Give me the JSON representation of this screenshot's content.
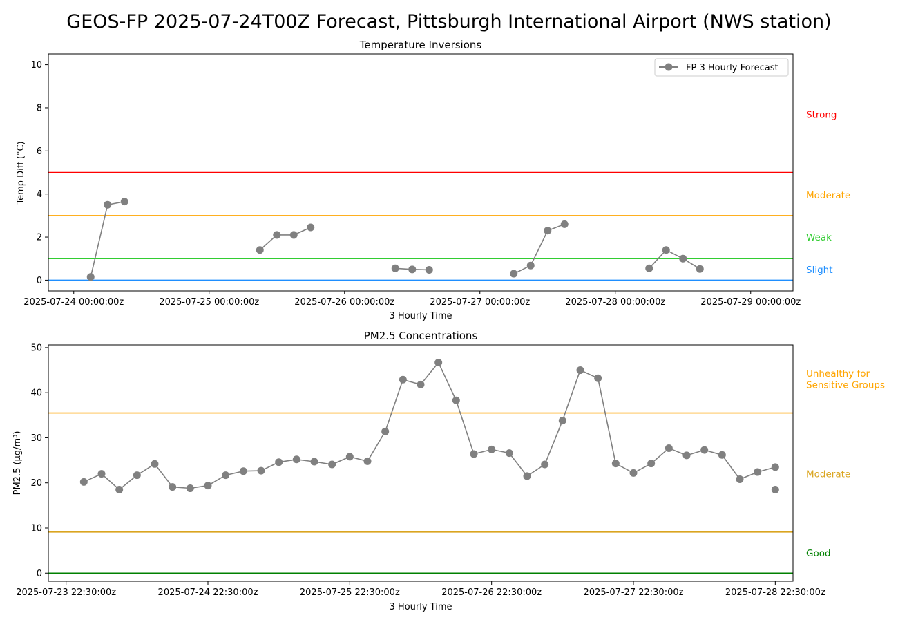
{
  "figure": {
    "title": "GEOS-FP 2025-07-24T00Z Forecast, Pittsburgh International Airport (NWS station)"
  },
  "chart_data": [
    {
      "type": "line",
      "title": "Temperature Inversions",
      "xlabel": "3 Hourly Time",
      "ylabel": "Temp Diff (°C)",
      "ylim": [
        -0.5,
        10.5
      ],
      "yticks": [
        0,
        2,
        4,
        6,
        8,
        10
      ],
      "x_tick_labels": [
        "2025-07-24 00:00:00z",
        "2025-07-25 00:00:00z",
        "2025-07-26 00:00:00z",
        "2025-07-27 00:00:00z",
        "2025-07-28 00:00:00z",
        "2025-07-29 00:00:00z"
      ],
      "x_unit": "hours after 2025-07-24 00:00:00z",
      "xlim": [
        -4.5,
        127.5
      ],
      "grid": false,
      "legend": {
        "placement": "top-right",
        "entries": [
          "FP 3 Hourly Forecast"
        ]
      },
      "series": [
        {
          "name": "FP 3 Hourly Forecast",
          "color": "#808080",
          "segments": [
            {
              "x": [
                3,
                6,
                9
              ],
              "y": [
                0.15,
                3.5,
                3.65
              ]
            },
            {
              "x": [
                33,
                36,
                39,
                42
              ],
              "y": [
                1.4,
                2.1,
                2.1,
                2.45
              ]
            },
            {
              "x": [
                57,
                60,
                63
              ],
              "y": [
                0.55,
                0.5,
                0.48
              ]
            },
            {
              "x": [
                78,
                81,
                84,
                87
              ],
              "y": [
                0.3,
                0.68,
                2.3,
                2.6
              ]
            },
            {
              "x": [
                102,
                105,
                108,
                111
              ],
              "y": [
                0.55,
                1.4,
                1.0,
                0.52
              ]
            }
          ]
        }
      ],
      "thresholds": [
        {
          "value": 0,
          "color": "#1f8fff"
        },
        {
          "value": 1,
          "color": "#32cd32"
        },
        {
          "value": 3,
          "color": "#ffa500"
        },
        {
          "value": 5,
          "color": "#ff0000"
        }
      ],
      "categories": [
        {
          "label": "Strong",
          "y": 7.7,
          "color": "#ff0000"
        },
        {
          "label": "Moderate",
          "y": 3.95,
          "color": "#ffa500"
        },
        {
          "label": "Weak",
          "y": 2.0,
          "color": "#32cd32"
        },
        {
          "label": "Slight",
          "y": 0.5,
          "color": "#1f8fff"
        }
      ]
    },
    {
      "type": "line",
      "title": "PM2.5 Concentrations",
      "xlabel": "3 Hourly Time",
      "ylabel": "PM2.5 (μg/m³)",
      "ylim": [
        -1.8,
        50.6
      ],
      "yticks": [
        0,
        10,
        20,
        30,
        40,
        50
      ],
      "x_tick_labels": [
        "2025-07-23 22:30:00z",
        "2025-07-24 22:30:00z",
        "2025-07-25 22:30:00z",
        "2025-07-26 22:30:00z",
        "2025-07-27 22:30:00z",
        "2025-07-28 22:30:00z"
      ],
      "x_unit": "hours after 2025-07-23 22:30:00z",
      "xlim": [
        -3,
        123
      ],
      "grid": false,
      "series": [
        {
          "name": "",
          "color": "#808080",
          "x": [
            3,
            6,
            9,
            12,
            15,
            18,
            21,
            24,
            27,
            30,
            33,
            36,
            39,
            42,
            45,
            48,
            51,
            54,
            57,
            60,
            63,
            66,
            69,
            72,
            75,
            78,
            81,
            84,
            87,
            90,
            93,
            96,
            99,
            102,
            105,
            108,
            111,
            114,
            117,
            120
          ],
          "y": [
            20.2,
            22.0,
            18.5,
            21.7,
            24.2,
            19.1,
            18.8,
            19.4,
            21.7,
            22.6,
            22.7,
            24.6,
            25.2,
            24.7,
            24.1,
            25.8,
            24.8,
            31.4,
            42.9,
            41.8,
            46.7,
            38.3,
            26.4,
            27.4,
            26.6,
            21.5,
            24.1,
            33.8,
            45.0,
            43.2,
            24.3,
            22.2,
            24.3,
            27.7,
            26.1,
            27.3,
            26.2,
            20.8,
            22.4,
            23.5
          ]
        },
        {
          "name": "",
          "color": "#808080",
          "x": [
            120
          ],
          "y": [
            18.5
          ]
        }
      ],
      "thresholds": [
        {
          "value": 0,
          "color": "#008000"
        },
        {
          "value": 9.1,
          "color": "#daa520"
        },
        {
          "value": 35.5,
          "color": "#ffa500"
        }
      ],
      "categories": [
        {
          "label": "Unhealthy for",
          "y": 44.3,
          "color": "#ffa500"
        },
        {
          "label": "Sensitive Groups",
          "y": 41.8,
          "color": "#ffa500"
        },
        {
          "label": "Moderate",
          "y": 22.0,
          "color": "#daa520"
        },
        {
          "label": "Good",
          "y": 4.5,
          "color": "#008000"
        }
      ]
    }
  ]
}
